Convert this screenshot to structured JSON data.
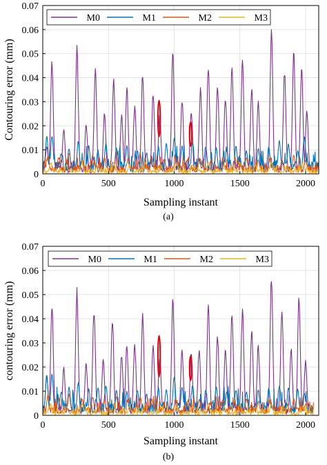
{
  "chart_data": [
    {
      "type": "line",
      "caption": "(a)",
      "xlabel": "Sampling instant",
      "ylabel": "Contouring error (mm)",
      "xlim": [
        0,
        2100
      ],
      "ylim": [
        0,
        0.07
      ],
      "xticks": [
        "0",
        "500",
        "1000",
        "1500",
        "2000"
      ],
      "yticks": [
        "0",
        "0.01",
        "0.02",
        "0.03",
        "0.04",
        "0.05",
        "0.06",
        "0.07"
      ],
      "grid": true,
      "legend_position": "top",
      "series": [
        {
          "name": "M0",
          "color": "#7E2F8E",
          "peaks": [
            [
              30,
              0.012
            ],
            [
              70,
              0.049
            ],
            [
              160,
              0.019
            ],
            [
              260,
              0.055
            ],
            [
              330,
              0.021
            ],
            [
              400,
              0.046
            ],
            [
              470,
              0.026
            ],
            [
              540,
              0.041
            ],
            [
              600,
              0.025
            ],
            [
              640,
              0.037
            ],
            [
              700,
              0.029
            ],
            [
              760,
              0.043
            ],
            [
              840,
              0.035
            ],
            [
              890,
              0.025
            ],
            [
              990,
              0.052
            ],
            [
              1060,
              0.032
            ],
            [
              1130,
              0.027
            ],
            [
              1200,
              0.036
            ],
            [
              1260,
              0.046
            ],
            [
              1330,
              0.038
            ],
            [
              1390,
              0.033
            ],
            [
              1440,
              0.046
            ],
            [
              1520,
              0.049
            ],
            [
              1590,
              0.037
            ],
            [
              1640,
              0.031
            ],
            [
              1740,
              0.063
            ],
            [
              1840,
              0.044
            ],
            [
              1910,
              0.053
            ],
            [
              1970,
              0.047
            ],
            [
              2010,
              0.027
            ]
          ],
          "baseline": 0.002,
          "end_x": 2030
        },
        {
          "name": "M1",
          "color": "#0072BD",
          "peaks": [
            [
              30,
              0.016
            ],
            [
              70,
              0.017
            ],
            [
              140,
              0.009
            ],
            [
              200,
              0.011
            ],
            [
              270,
              0.014
            ],
            [
              350,
              0.012
            ],
            [
              420,
              0.01
            ],
            [
              480,
              0.013
            ],
            [
              560,
              0.011
            ],
            [
              640,
              0.012
            ],
            [
              720,
              0.01
            ],
            [
              790,
              0.009
            ],
            [
              880,
              0.012
            ],
            [
              940,
              0.013
            ],
            [
              1000,
              0.016
            ],
            [
              1060,
              0.012
            ],
            [
              1140,
              0.014
            ],
            [
              1240,
              0.012
            ],
            [
              1320,
              0.011
            ],
            [
              1400,
              0.01
            ],
            [
              1470,
              0.012
            ],
            [
              1550,
              0.01
            ],
            [
              1640,
              0.011
            ],
            [
              1720,
              0.012
            ],
            [
              1800,
              0.014
            ],
            [
              1870,
              0.013
            ],
            [
              1940,
              0.01
            ],
            [
              1990,
              0.016
            ]
          ],
          "baseline": 0.003,
          "end_x": 2100
        },
        {
          "name": "M2",
          "color": "#D95319",
          "peaks": [
            [
              40,
              0.008
            ],
            [
              120,
              0.007
            ],
            [
              200,
              0.009
            ],
            [
              300,
              0.006
            ],
            [
              380,
              0.008
            ],
            [
              470,
              0.007
            ],
            [
              560,
              0.009
            ],
            [
              650,
              0.007
            ],
            [
              740,
              0.009
            ],
            [
              830,
              0.007
            ],
            [
              920,
              0.006
            ],
            [
              1010,
              0.007
            ],
            [
              1100,
              0.006
            ],
            [
              1190,
              0.007
            ],
            [
              1280,
              0.006
            ],
            [
              1370,
              0.007
            ],
            [
              1460,
              0.006
            ],
            [
              1550,
              0.007
            ],
            [
              1640,
              0.006
            ],
            [
              1730,
              0.007
            ],
            [
              1820,
              0.006
            ],
            [
              1910,
              0.008
            ],
            [
              2000,
              0.006
            ]
          ],
          "baseline": 0.002,
          "end_x": 2100
        },
        {
          "name": "M3",
          "color": "#EDB120",
          "peaks": [
            [
              60,
              0.005
            ],
            [
              180,
              0.004
            ],
            [
              300,
              0.005
            ],
            [
              420,
              0.004
            ],
            [
              540,
              0.005
            ],
            [
              660,
              0.004
            ],
            [
              780,
              0.005
            ],
            [
              900,
              0.004
            ],
            [
              1020,
              0.005
            ],
            [
              1140,
              0.004
            ],
            [
              1260,
              0.005
            ],
            [
              1380,
              0.004
            ],
            [
              1500,
              0.005
            ],
            [
              1620,
              0.004
            ],
            [
              1740,
              0.005
            ],
            [
              1860,
              0.004
            ],
            [
              1980,
              0.005
            ]
          ],
          "baseline": 0.001,
          "end_x": 2100
        }
      ],
      "annotations": [
        {
          "type": "ellipse",
          "cx": 885,
          "cy": 0.023,
          "rx": 30,
          "ry": 0.0075,
          "color": "#E8000B"
        },
        {
          "type": "ellipse",
          "cx": 1125,
          "cy": 0.0165,
          "rx": 30,
          "ry": 0.005,
          "color": "#E8000B"
        }
      ]
    },
    {
      "type": "line",
      "caption": "(b)",
      "xlabel": "Sampling instant",
      "ylabel": "contouring error (mm)",
      "xlim": [
        0,
        2100
      ],
      "ylim": [
        0,
        0.07
      ],
      "xticks": [
        "0",
        "500",
        "1000",
        "1500",
        "2000"
      ],
      "yticks": [
        "0",
        "0.01",
        "0.02",
        "0.03",
        "0.04",
        "0.05",
        "0.06",
        "0.07"
      ],
      "grid": true,
      "legend_position": "top",
      "series": [
        {
          "name": "M0",
          "color": "#7E2F8E",
          "peaks": [
            [
              30,
              0.017
            ],
            [
              70,
              0.048
            ],
            [
              160,
              0.02
            ],
            [
              260,
              0.053
            ],
            [
              330,
              0.022
            ],
            [
              390,
              0.045
            ],
            [
              460,
              0.024
            ],
            [
              530,
              0.041
            ],
            [
              600,
              0.026
            ],
            [
              640,
              0.03
            ],
            [
              700,
              0.03
            ],
            [
              760,
              0.043
            ],
            [
              840,
              0.03
            ],
            [
              890,
              0.025
            ],
            [
              990,
              0.05
            ],
            [
              1060,
              0.028
            ],
            [
              1130,
              0.026
            ],
            [
              1190,
              0.028
            ],
            [
              1260,
              0.046
            ],
            [
              1330,
              0.034
            ],
            [
              1390,
              0.028
            ],
            [
              1440,
              0.044
            ],
            [
              1520,
              0.046
            ],
            [
              1590,
              0.036
            ],
            [
              1640,
              0.03
            ],
            [
              1740,
              0.06
            ],
            [
              1820,
              0.044
            ],
            [
              1890,
              0.028
            ],
            [
              1950,
              0.051
            ],
            [
              2000,
              0.023
            ]
          ],
          "baseline": 0.002,
          "end_x": 2040
        },
        {
          "name": "M1",
          "color": "#0072BD",
          "peaks": [
            [
              30,
              0.017
            ],
            [
              70,
              0.018
            ],
            [
              140,
              0.01
            ],
            [
              200,
              0.012
            ],
            [
              270,
              0.014
            ],
            [
              350,
              0.011
            ],
            [
              420,
              0.012
            ],
            [
              480,
              0.013
            ],
            [
              560,
              0.011
            ],
            [
              640,
              0.01
            ],
            [
              720,
              0.011
            ],
            [
              790,
              0.009
            ],
            [
              880,
              0.012
            ],
            [
              940,
              0.011
            ],
            [
              1000,
              0.017
            ],
            [
              1060,
              0.012
            ],
            [
              1140,
              0.013
            ],
            [
              1240,
              0.011
            ],
            [
              1320,
              0.012
            ],
            [
              1400,
              0.01
            ],
            [
              1470,
              0.011
            ],
            [
              1550,
              0.01
            ],
            [
              1640,
              0.011
            ],
            [
              1720,
              0.012
            ],
            [
              1800,
              0.013
            ],
            [
              1870,
              0.012
            ],
            [
              1940,
              0.011
            ],
            [
              1990,
              0.01
            ]
          ],
          "baseline": 0.003,
          "end_x": 2060
        },
        {
          "name": "M2",
          "color": "#D95319",
          "peaks": [
            [
              40,
              0.009
            ],
            [
              120,
              0.008
            ],
            [
              200,
              0.009
            ],
            [
              300,
              0.007
            ],
            [
              380,
              0.008
            ],
            [
              470,
              0.007
            ],
            [
              560,
              0.008
            ],
            [
              650,
              0.007
            ],
            [
              740,
              0.008
            ],
            [
              830,
              0.007
            ],
            [
              920,
              0.006
            ],
            [
              1010,
              0.007
            ],
            [
              1100,
              0.006
            ],
            [
              1190,
              0.007
            ],
            [
              1280,
              0.006
            ],
            [
              1370,
              0.007
            ],
            [
              1460,
              0.006
            ],
            [
              1550,
              0.007
            ],
            [
              1640,
              0.006
            ],
            [
              1730,
              0.007
            ],
            [
              1820,
              0.006
            ],
            [
              1910,
              0.007
            ],
            [
              2000,
              0.005
            ]
          ],
          "baseline": 0.002,
          "end_x": 2060
        },
        {
          "name": "M3",
          "color": "#EDB120",
          "peaks": [
            [
              60,
              0.005
            ],
            [
              180,
              0.004
            ],
            [
              300,
              0.005
            ],
            [
              420,
              0.004
            ],
            [
              540,
              0.005
            ],
            [
              660,
              0.004
            ],
            [
              780,
              0.005
            ],
            [
              900,
              0.004
            ],
            [
              1020,
              0.005
            ],
            [
              1140,
              0.004
            ],
            [
              1260,
              0.005
            ],
            [
              1380,
              0.004
            ],
            [
              1500,
              0.005
            ],
            [
              1620,
              0.004
            ],
            [
              1740,
              0.005
            ],
            [
              1860,
              0.004
            ],
            [
              1980,
              0.004
            ]
          ],
          "baseline": 0.001,
          "end_x": 2060
        }
      ],
      "annotations": [
        {
          "type": "ellipse",
          "cx": 885,
          "cy": 0.0245,
          "rx": 30,
          "ry": 0.0085,
          "color": "#E8000B"
        },
        {
          "type": "ellipse",
          "cx": 1125,
          "cy": 0.0195,
          "rx": 28,
          "ry": 0.005,
          "color": "#E8000B"
        }
      ]
    }
  ]
}
